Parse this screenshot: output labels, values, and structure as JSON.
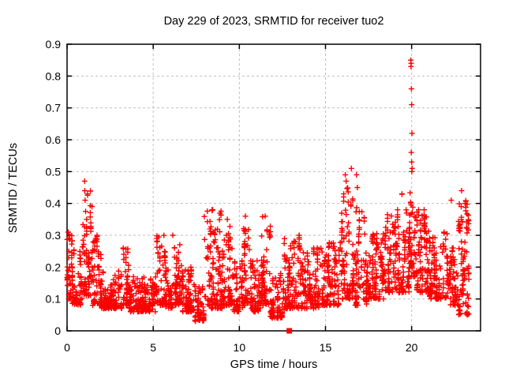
{
  "chart_data": {
    "type": "scatter",
    "title": "Day 229 of 2023, SRMTID for receiver tuo2",
    "xlabel": "GPS time / hours",
    "ylabel": "SRMTID / TECUs",
    "xlim": [
      0,
      24
    ],
    "ylim": [
      0,
      0.9
    ],
    "xticks": [
      0,
      5,
      10,
      15,
      20
    ],
    "yticks": [
      0,
      0.1,
      0.2,
      0.3,
      0.4,
      0.5,
      0.6,
      0.7,
      0.8,
      0.9
    ],
    "grid": true,
    "grid_style": "dashed",
    "legend_position": "none",
    "series": [
      {
        "name": "SRMTID",
        "marker": "plus",
        "color": "#ff0000",
        "outlier_points": [
          [
            0.07,
            0.31
          ],
          [
            0.1,
            0.29
          ],
          [
            1.02,
            0.47
          ],
          [
            1.03,
            0.44
          ],
          [
            1.05,
            0.41
          ],
          [
            8.45,
            0.38
          ],
          [
            9.3,
            0.35
          ],
          [
            10.35,
            0.36
          ],
          [
            11.5,
            0.36
          ],
          [
            16.5,
            0.51
          ],
          [
            16.15,
            0.49
          ],
          [
            16.2,
            0.47
          ],
          [
            16.8,
            0.49
          ],
          [
            16.85,
            0.45
          ],
          [
            19.95,
            0.85
          ],
          [
            19.97,
            0.84
          ],
          [
            19.96,
            0.83
          ],
          [
            19.99,
            0.76
          ],
          [
            20.0,
            0.71
          ],
          [
            20.02,
            0.62
          ],
          [
            19.98,
            0.56
          ],
          [
            20.0,
            0.53
          ],
          [
            20.03,
            0.51
          ],
          [
            20.01,
            0.5
          ],
          [
            22.3,
            0.41
          ],
          [
            22.9,
            0.44
          ],
          [
            23.1,
            0.4
          ]
        ],
        "density_segments_comment": "estimated scatter envelope: [t_start_h, t_end_h, y_min_TECU, y_max_TECU, n_points]",
        "density_segments": [
          [
            0.0,
            0.3,
            0.1,
            0.32,
            40
          ],
          [
            0.3,
            0.9,
            0.08,
            0.27,
            70
          ],
          [
            0.9,
            1.45,
            0.11,
            0.44,
            75
          ],
          [
            1.45,
            2.0,
            0.08,
            0.3,
            65
          ],
          [
            2.0,
            3.2,
            0.07,
            0.19,
            140
          ],
          [
            3.2,
            3.6,
            0.08,
            0.26,
            45
          ],
          [
            3.6,
            5.2,
            0.06,
            0.17,
            180
          ],
          [
            5.2,
            5.7,
            0.08,
            0.3,
            55
          ],
          [
            5.7,
            6.1,
            0.07,
            0.2,
            45
          ],
          [
            6.1,
            6.65,
            0.08,
            0.32,
            60
          ],
          [
            6.65,
            7.4,
            0.06,
            0.2,
            85
          ],
          [
            7.4,
            7.95,
            0.03,
            0.14,
            55
          ],
          [
            7.95,
            9.0,
            0.07,
            0.38,
            120
          ],
          [
            9.0,
            9.6,
            0.08,
            0.34,
            70
          ],
          [
            9.6,
            10.2,
            0.06,
            0.22,
            70
          ],
          [
            10.2,
            10.6,
            0.08,
            0.36,
            45
          ],
          [
            10.6,
            11.2,
            0.06,
            0.22,
            70
          ],
          [
            11.2,
            11.8,
            0.08,
            0.36,
            70
          ],
          [
            11.8,
            12.6,
            0.04,
            0.18,
            90
          ],
          [
            12.6,
            13.6,
            0.07,
            0.3,
            110
          ],
          [
            13.6,
            14.8,
            0.07,
            0.26,
            130
          ],
          [
            14.8,
            15.8,
            0.08,
            0.28,
            110
          ],
          [
            15.8,
            16.6,
            0.1,
            0.48,
            90
          ],
          [
            16.6,
            17.4,
            0.08,
            0.42,
            90
          ],
          [
            17.4,
            18.4,
            0.1,
            0.31,
            110
          ],
          [
            18.4,
            19.4,
            0.12,
            0.38,
            110
          ],
          [
            19.4,
            19.85,
            0.12,
            0.43,
            55
          ],
          [
            19.85,
            20.3,
            0.17,
            0.47,
            60
          ],
          [
            20.3,
            21.0,
            0.12,
            0.38,
            90
          ],
          [
            21.0,
            22.2,
            0.1,
            0.31,
            130
          ],
          [
            22.2,
            22.7,
            0.08,
            0.26,
            60
          ],
          [
            22.7,
            23.35,
            0.05,
            0.42,
            95
          ]
        ]
      }
    ],
    "special_points": [
      {
        "x": 12.9,
        "y": 0.0,
        "marker": "filled-square",
        "color": "#ff0000"
      }
    ]
  },
  "style": {
    "background": "#ffffff",
    "border_color": "#000000",
    "grid_color": "#bebebe",
    "text_color": "#000000",
    "marker_color": "#ff0000"
  }
}
